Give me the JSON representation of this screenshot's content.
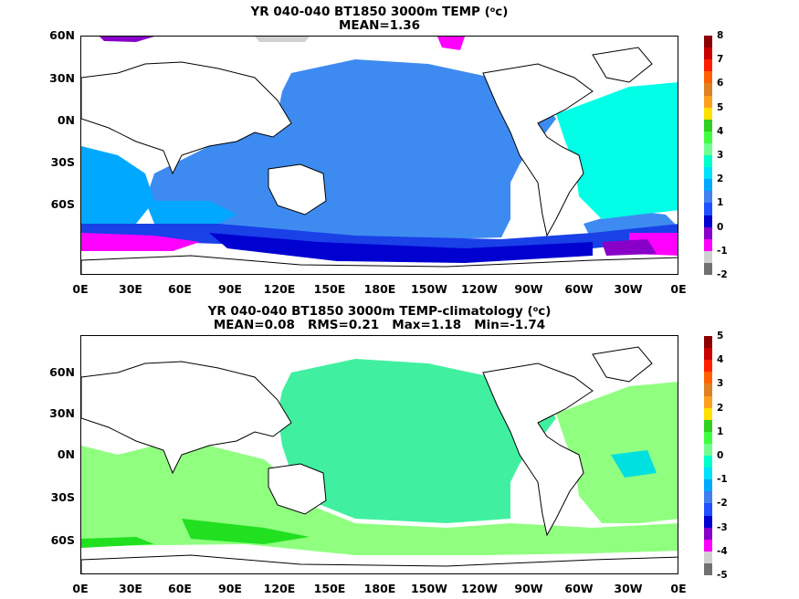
{
  "panels": [
    {
      "title_line1_pre": "YR 040-040 BT1850 3000m TEMP (",
      "title_sup": "o",
      "title_line1_post": "c)",
      "title_line2": "MEAN=1.36",
      "colorbar": {
        "labels": [
          "8",
          "7",
          "6",
          "5",
          "4",
          "3",
          "2",
          "1",
          "0",
          "-1",
          "-2"
        ],
        "colors": [
          "#8b0000",
          "#c80000",
          "#ff2000",
          "#ff6000",
          "#e08020",
          "#ffa020",
          "#ffe000",
          "#30d020",
          "#40ff40",
          "#70ff90",
          "#00ffc8",
          "#00e0ff",
          "#00a8ff",
          "#4080f0",
          "#2050ff",
          "#0000d0",
          "#8800c8",
          "#ff00ff",
          "#d0d0d0",
          "#707070"
        ]
      },
      "fill_colors": {
        "deep": "#3d8bf0",
        "mid": "#00a8ff",
        "warm": "#00ffe6",
        "cold1": "#1a40e8",
        "cold2": "#0000d0",
        "cold3": "#ff00ff",
        "cold4": "#8800c8"
      }
    },
    {
      "title_line1_pre": "YR 040-040 BT1850 3000m TEMP-climatology (",
      "title_sup": "o",
      "title_line1_post": "c)",
      "title_line2": "MEAN=0.08   RMS=0.21   Max=1.18   Min=-1.74",
      "colorbar": {
        "labels": [
          "5",
          "4",
          "3",
          "2",
          "1",
          "0",
          "-1",
          "-2",
          "-3",
          "-4",
          "-5"
        ],
        "colors": [
          "#8b0000",
          "#c80000",
          "#ff2000",
          "#ff6000",
          "#e08020",
          "#ffa020",
          "#ffe000",
          "#30d020",
          "#40ff40",
          "#70ff90",
          "#00ffc8",
          "#00e0ff",
          "#00a8ff",
          "#4080f0",
          "#2050ff",
          "#0000d0",
          "#8800c8",
          "#ff00ff",
          "#d0d0d0",
          "#707070"
        ]
      },
      "fill_colors": {
        "main": "#90ff80",
        "pac": "#40f0a0",
        "warm": "#20e020",
        "cool": "#00e0e0"
      }
    }
  ],
  "lat_labels": [
    "60N",
    "30N",
    "0N",
    "30S",
    "60S"
  ],
  "lon_labels": [
    "0E",
    "30E",
    "60E",
    "90E",
    "120E",
    "150E",
    "180E",
    "150W",
    "120W",
    "90W",
    "60W",
    "30W",
    "0E"
  ]
}
